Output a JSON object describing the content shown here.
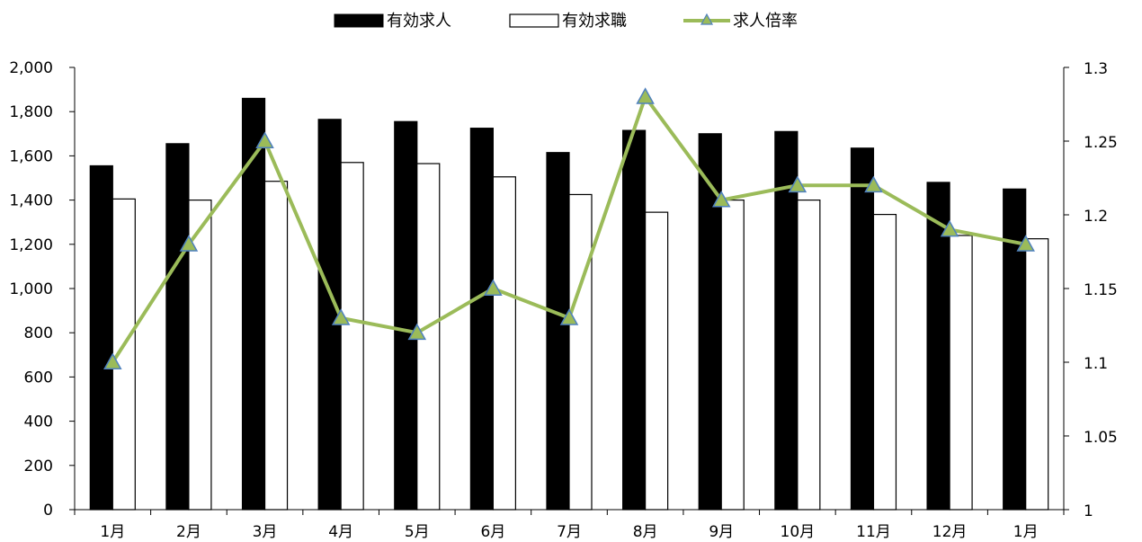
{
  "chart_data": {
    "type": "bar",
    "categories": [
      "1月",
      "2月",
      "3月",
      "4月",
      "5月",
      "6月",
      "7月",
      "8月",
      "9月",
      "10月",
      "11月",
      "12月",
      "1月"
    ],
    "series": [
      {
        "name": "有効求人",
        "type": "bar",
        "axis": "left",
        "color": "#000000",
        "values": [
          1555,
          1655,
          1860,
          1765,
          1755,
          1725,
          1615,
          1715,
          1700,
          1710,
          1635,
          1480,
          1450
        ]
      },
      {
        "name": "有効求職",
        "type": "bar",
        "axis": "left",
        "color": "#ffffff",
        "values": [
          1405,
          1400,
          1485,
          1570,
          1565,
          1505,
          1425,
          1345,
          1400,
          1400,
          1335,
          1240,
          1225
        ]
      },
      {
        "name": "求人倍率",
        "type": "line",
        "axis": "right",
        "color": "#9BBB59",
        "marker": "triangle",
        "marker_color": "#9BBB59",
        "marker_edge": "#4F81BD",
        "values": [
          1.1,
          1.18,
          1.25,
          1.13,
          1.12,
          1.15,
          1.13,
          1.28,
          1.21,
          1.22,
          1.22,
          1.19,
          1.18
        ]
      }
    ],
    "y_left": {
      "min": 0,
      "max": 2000,
      "step": 200,
      "tick_labels": [
        "0",
        "200",
        "400",
        "600",
        "800",
        "1,000",
        "1,200",
        "1,400",
        "1,600",
        "1,800",
        "2,000"
      ]
    },
    "y_right": {
      "min": 1,
      "max": 1.3,
      "step": 0.05,
      "tick_labels": [
        "1",
        "1.05",
        "1.1",
        "1.15",
        "1.2",
        "1.25",
        "1.3"
      ]
    },
    "title": "",
    "xlabel": "",
    "ylabel": "",
    "grid": false,
    "legend_position": "top-center"
  }
}
